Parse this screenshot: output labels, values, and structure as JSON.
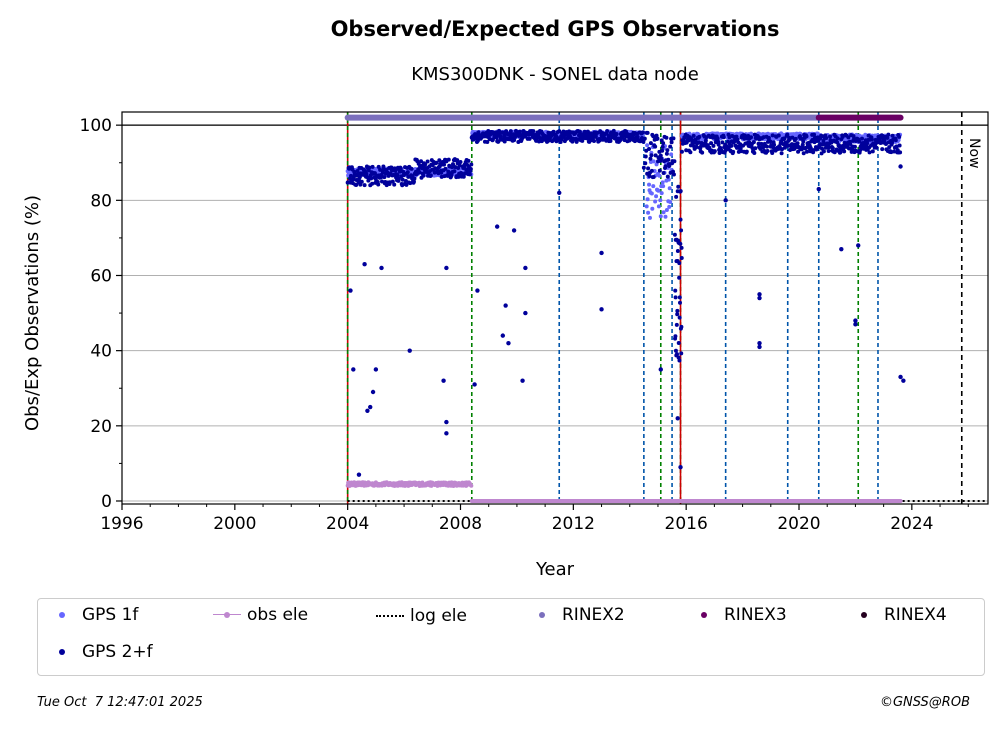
{
  "chart_data": {
    "type": "scatter",
    "title": "Observed/Expected GPS Observations",
    "subtitle": "KMS300DNK - SONEL data node",
    "xlabel": "Year",
    "ylabel": "Obs/Exp Observations (%)",
    "xlim": [
      1996,
      2026.7
    ],
    "ylim": [
      -0.8,
      103.5
    ],
    "xticks": [
      1996,
      2000,
      2004,
      2008,
      2012,
      2016,
      2020,
      2024
    ],
    "xtick_labels": [
      "1996",
      "2000",
      "2004",
      "2008",
      "2012",
      "2016",
      "2020",
      "2024"
    ],
    "yticks": [
      0,
      20,
      40,
      60,
      80,
      100
    ],
    "ytick_labels": [
      "0",
      "20",
      "40",
      "60",
      "80",
      "100"
    ],
    "grid": "horizontal",
    "reference_line": 100,
    "now_year": 2025.77,
    "now_label": "Now",
    "vertical_markers": [
      {
        "x": 2004.0,
        "color": "#cc0000",
        "style": "solid"
      },
      {
        "x": 2004.0,
        "color": "#008000",
        "style": "dashed"
      },
      {
        "x": 2008.4,
        "color": "#008000",
        "style": "dashed"
      },
      {
        "x": 2011.5,
        "color": "#0055aa",
        "style": "dashed"
      },
      {
        "x": 2014.5,
        "color": "#0055aa",
        "style": "dashed"
      },
      {
        "x": 2015.1,
        "color": "#008000",
        "style": "dashed"
      },
      {
        "x": 2015.5,
        "color": "#0055aa",
        "style": "dashed"
      },
      {
        "x": 2015.8,
        "color": "#008000",
        "style": "dashed"
      },
      {
        "x": 2015.8,
        "color": "#cc0000",
        "style": "solid"
      },
      {
        "x": 2017.4,
        "color": "#0055aa",
        "style": "dashed"
      },
      {
        "x": 2019.6,
        "color": "#0055aa",
        "style": "dashed"
      },
      {
        "x": 2020.7,
        "color": "#0055aa",
        "style": "dashed"
      },
      {
        "x": 2022.1,
        "color": "#008000",
        "style": "dashed"
      },
      {
        "x": 2022.8,
        "color": "#0055aa",
        "style": "dashed"
      }
    ],
    "series": [
      {
        "name": "GPS 2+f",
        "color": "#00009b",
        "segments": [
          {
            "x0": 2004.0,
            "x1": 2006.4,
            "y": 86.5,
            "spread": 2.5
          },
          {
            "x0": 2006.4,
            "x1": 2008.4,
            "y": 88.5,
            "spread": 2.5
          },
          {
            "x0": 2008.4,
            "x1": 2014.5,
            "y": 97.0,
            "spread": 1.5
          },
          {
            "x0": 2014.5,
            "x1": 2015.6,
            "y": 92.0,
            "spread": 6.0
          },
          {
            "x0": 2015.6,
            "x1": 2015.85,
            "y": 60.0,
            "spread": 25.0
          },
          {
            "x0": 2015.85,
            "x1": 2023.6,
            "y": 95.0,
            "spread": 2.5
          }
        ],
        "outliers": [
          [
            2004.1,
            56
          ],
          [
            2004.2,
            35
          ],
          [
            2004.4,
            7
          ],
          [
            2004.6,
            63
          ],
          [
            2004.7,
            24
          ],
          [
            2004.8,
            25
          ],
          [
            2004.9,
            29
          ],
          [
            2005.0,
            35
          ],
          [
            2005.2,
            62
          ],
          [
            2006.2,
            40
          ],
          [
            2007.4,
            32
          ],
          [
            2007.5,
            21
          ],
          [
            2007.5,
            18
          ],
          [
            2007.5,
            62
          ],
          [
            2008.5,
            31
          ],
          [
            2008.6,
            56
          ],
          [
            2009.3,
            73
          ],
          [
            2009.5,
            44
          ],
          [
            2009.6,
            52
          ],
          [
            2009.7,
            42
          ],
          [
            2009.9,
            72
          ],
          [
            2010.2,
            32
          ],
          [
            2010.3,
            62
          ],
          [
            2010.3,
            50
          ],
          [
            2011.5,
            82
          ],
          [
            2013.0,
            66
          ],
          [
            2013.0,
            51
          ],
          [
            2015.1,
            35
          ],
          [
            2015.7,
            22
          ],
          [
            2015.8,
            9
          ],
          [
            2017.4,
            80
          ],
          [
            2018.6,
            55
          ],
          [
            2018.6,
            54
          ],
          [
            2018.6,
            42
          ],
          [
            2018.6,
            41
          ],
          [
            2020.7,
            83
          ],
          [
            2021.5,
            67
          ],
          [
            2022.0,
            48
          ],
          [
            2022.0,
            47
          ],
          [
            2022.1,
            68
          ],
          [
            2023.6,
            89
          ],
          [
            2023.6,
            33
          ],
          [
            2023.7,
            32
          ]
        ]
      },
      {
        "name": "GPS 1f",
        "color": "#6666ff",
        "segments": [
          {
            "x0": 2004.0,
            "x1": 2008.4,
            "y": 87.5,
            "spread": 1.0
          },
          {
            "x0": 2008.4,
            "x1": 2014.5,
            "y": 97.5,
            "spread": 0.8
          },
          {
            "x0": 2014.6,
            "x1": 2015.5,
            "y": 85.0,
            "spread": 10.0
          },
          {
            "x0": 2015.85,
            "x1": 2020.7,
            "y": 97.0,
            "spread": 0.8
          },
          {
            "x0": 2020.7,
            "x1": 2023.6,
            "y": 96.5,
            "spread": 1.0
          }
        ],
        "outliers": []
      },
      {
        "name": "obs ele",
        "color": "#bf87cf",
        "segments": [
          {
            "x0": 2004.0,
            "x1": 2008.4,
            "y": 4.5,
            "spread": 0.5
          },
          {
            "x0": 2008.4,
            "x1": 2023.6,
            "y": 0.0,
            "spread": 0.0
          }
        ],
        "outliers": []
      },
      {
        "name": "log ele",
        "color": "#000000",
        "segments": [
          {
            "x0": 2004.0,
            "x1": 2026.7,
            "y": 0.0,
            "spread": 0.0
          }
        ],
        "outliers": []
      },
      {
        "name": "RINEX2",
        "color": "#7b6fbd",
        "segments": [
          {
            "x0": 2004.0,
            "x1": 2020.7,
            "y": 102.0,
            "spread": 0.0
          }
        ],
        "outliers": []
      },
      {
        "name": "RINEX3",
        "color": "#6a0064",
        "segments": [
          {
            "x0": 2020.7,
            "x1": 2023.6,
            "y": 102.0,
            "spread": 0.0
          }
        ],
        "outliers": []
      },
      {
        "name": "RINEX4",
        "color": "#24001f",
        "segments": [],
        "outliers": []
      }
    ]
  },
  "legend": {
    "items": [
      {
        "label": "GPS 1f",
        "color": "#6666ff",
        "kind": "dot"
      },
      {
        "label": "obs ele",
        "color": "#bf87cf",
        "kind": "line-dot"
      },
      {
        "label": "log ele",
        "color": "#000000",
        "kind": "dotted"
      },
      {
        "label": "RINEX2",
        "color": "#7b6fbd",
        "kind": "dot"
      },
      {
        "label": "RINEX3",
        "color": "#6a0064",
        "kind": "dot"
      },
      {
        "label": "RINEX4",
        "color": "#24001f",
        "kind": "dot"
      },
      {
        "label": "GPS 2+f",
        "color": "#00009b",
        "kind": "dot"
      }
    ]
  },
  "footer": {
    "timestamp": "Tue Oct  7 12:47:01 2025",
    "credit": "©GNSS@ROB"
  }
}
